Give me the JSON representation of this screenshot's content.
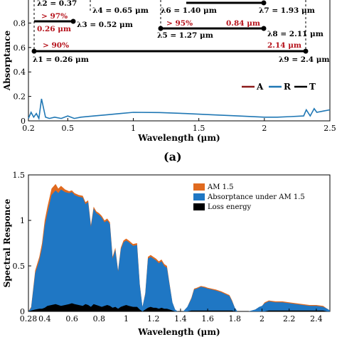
{
  "colors": {
    "absorptance": "#8b1a1a",
    "reflectance": "#1f77b4",
    "transmittance": "#000000",
    "am15": "#e06a1f",
    "absorbed": "#1f77c4",
    "loss": "#000000",
    "annotation_red": "#b5121b"
  },
  "chart_data": [
    {
      "type": "line",
      "panel_label": "(a)",
      "xlabel": "Wavelength (μm)",
      "ylabel": "Absorptance",
      "xlim": [
        0.2,
        2.5
      ],
      "ylim": [
        0,
        1
      ],
      "xticks": [
        "0.2",
        "0.5",
        "1",
        "1.5",
        "2",
        "2.5"
      ],
      "xtick_values": [
        0.2,
        0.5,
        1,
        1.5,
        2,
        2.5
      ],
      "yticks": [
        "0",
        "0.2",
        "0.4",
        "0.6",
        "0.8"
      ],
      "ytick_values": [
        0,
        0.2,
        0.4,
        0.6,
        0.8
      ],
      "legend": [
        "A",
        "R",
        "T"
      ],
      "legend_position": "bottom-right",
      "series": [
        {
          "name": "R",
          "x": [
            0.2,
            0.22,
            0.24,
            0.26,
            0.28,
            0.3,
            0.33,
            0.36,
            0.4,
            0.45,
            0.5,
            0.55,
            0.6,
            0.7,
            0.8,
            0.9,
            1.0,
            1.2,
            1.4,
            1.6,
            1.8,
            2.0,
            2.1,
            2.2,
            2.3,
            2.32,
            2.35,
            2.38,
            2.4,
            2.45,
            2.5
          ],
          "y": [
            0.02,
            0.07,
            0.03,
            0.06,
            0.02,
            0.18,
            0.03,
            0.02,
            0.03,
            0.02,
            0.04,
            0.02,
            0.03,
            0.04,
            0.05,
            0.06,
            0.07,
            0.068,
            0.06,
            0.05,
            0.04,
            0.03,
            0.03,
            0.035,
            0.04,
            0.09,
            0.04,
            0.1,
            0.07,
            0.08,
            0.09
          ]
        }
      ],
      "annotations": [
        {
          "text": "λ2 = 0.37",
          "color": "black"
        },
        {
          "text": "λ4 = 0.65 μm",
          "color": "black"
        },
        {
          "text": "> 97%",
          "color": "red"
        },
        {
          "text": "0.26 μm",
          "color": "red"
        },
        {
          "text": "λ3 = 0.52 μm",
          "color": "black"
        },
        {
          "text": "λ6 = 1.40 μm",
          "color": "black"
        },
        {
          "text": "λ7 = 1.93 μm",
          "color": "black"
        },
        {
          "text": "> 95%",
          "color": "red"
        },
        {
          "text": "0.84 μm",
          "color": "red"
        },
        {
          "text": "λ5 = 1.27 μm",
          "color": "black"
        },
        {
          "text": "λ8 = 2.11 μm",
          "color": "black"
        },
        {
          "text": "> 90%",
          "color": "red"
        },
        {
          "text": "2.14 μm",
          "color": "red"
        },
        {
          "text": "λ1 = 0.26 μm",
          "color": "black"
        },
        {
          "text": "λ9 = 2.4 μm",
          "color": "black"
        }
      ]
    },
    {
      "type": "area",
      "xlabel": "Wavelength (μm)",
      "ylabel": "Spectral Responce",
      "xlim": [
        0.28,
        2.5
      ],
      "ylim": [
        0,
        1.5
      ],
      "xticks": [
        "0.28",
        "0.4",
        "0.6",
        "0.8",
        "1",
        "1.2",
        "1.4",
        "1.6",
        "1.8",
        "2",
        "2.2",
        "2.4"
      ],
      "xtick_values": [
        0.28,
        0.4,
        0.6,
        0.8,
        1,
        1.2,
        1.4,
        1.6,
        1.8,
        2,
        2.2,
        2.4
      ],
      "yticks": [
        "0",
        "0.5",
        "1",
        "1.5"
      ],
      "ytick_values": [
        0,
        0.5,
        1,
        1.5
      ],
      "legend": [
        "AM 1.5",
        "Absorptance under AM 1.5",
        "Loss energy"
      ],
      "legend_position": "top-right",
      "x": [
        0.28,
        0.3,
        0.33,
        0.36,
        0.38,
        0.4,
        0.42,
        0.45,
        0.48,
        0.5,
        0.52,
        0.55,
        0.58,
        0.6,
        0.62,
        0.65,
        0.68,
        0.7,
        0.72,
        0.74,
        0.76,
        0.78,
        0.8,
        0.82,
        0.84,
        0.86,
        0.88,
        0.9,
        0.92,
        0.94,
        0.96,
        0.98,
        1.0,
        1.02,
        1.05,
        1.08,
        1.1,
        1.12,
        1.14,
        1.16,
        1.18,
        1.2,
        1.22,
        1.24,
        1.26,
        1.28,
        1.3,
        1.32,
        1.34,
        1.36,
        1.38,
        1.4,
        1.42,
        1.45,
        1.48,
        1.5,
        1.52,
        1.55,
        1.58,
        1.6,
        1.63,
        1.66,
        1.7,
        1.73,
        1.76,
        1.78,
        1.8,
        1.82,
        1.85,
        1.9,
        1.95,
        1.98,
        2.0,
        2.02,
        2.05,
        2.1,
        2.15,
        2.2,
        2.25,
        2.3,
        2.35,
        2.4,
        2.45,
        2.48,
        2.5
      ],
      "series": [
        {
          "name": "AM 1.5",
          "values": [
            0.0,
            0.05,
            0.45,
            0.6,
            0.75,
            1.0,
            1.15,
            1.35,
            1.4,
            1.35,
            1.38,
            1.34,
            1.32,
            1.33,
            1.3,
            1.28,
            1.27,
            1.2,
            1.22,
            0.95,
            1.15,
            1.1,
            1.08,
            1.05,
            1.0,
            1.02,
            0.98,
            0.6,
            0.7,
            0.45,
            0.7,
            0.78,
            0.8,
            0.78,
            0.74,
            0.75,
            0.3,
            0.05,
            0.2,
            0.6,
            0.62,
            0.6,
            0.58,
            0.55,
            0.57,
            0.52,
            0.5,
            0.3,
            0.1,
            0.02,
            0.0,
            0.0,
            0.0,
            0.05,
            0.15,
            0.25,
            0.26,
            0.28,
            0.27,
            0.26,
            0.25,
            0.24,
            0.22,
            0.2,
            0.18,
            0.12,
            0.04,
            0.0,
            0.0,
            0.0,
            0.02,
            0.05,
            0.06,
            0.1,
            0.12,
            0.11,
            0.11,
            0.1,
            0.09,
            0.08,
            0.07,
            0.07,
            0.06,
            0.03,
            0.01
          ]
        },
        {
          "name": "Absorptance under AM 1.5",
          "values": [
            0.0,
            0.04,
            0.42,
            0.56,
            0.7,
            0.94,
            1.08,
            1.28,
            1.33,
            1.3,
            1.34,
            1.31,
            1.3,
            1.31,
            1.28,
            1.26,
            1.25,
            1.18,
            1.2,
            0.93,
            1.13,
            1.08,
            1.06,
            1.03,
            0.98,
            1.0,
            0.96,
            0.58,
            0.68,
            0.44,
            0.68,
            0.76,
            0.78,
            0.76,
            0.72,
            0.73,
            0.29,
            0.05,
            0.19,
            0.58,
            0.6,
            0.58,
            0.56,
            0.53,
            0.55,
            0.5,
            0.48,
            0.29,
            0.1,
            0.02,
            0.0,
            0.0,
            0.0,
            0.05,
            0.14,
            0.24,
            0.25,
            0.27,
            0.26,
            0.25,
            0.24,
            0.23,
            0.21,
            0.19,
            0.17,
            0.11,
            0.04,
            0.0,
            0.0,
            0.0,
            0.02,
            0.05,
            0.06,
            0.09,
            0.11,
            0.1,
            0.1,
            0.09,
            0.08,
            0.07,
            0.06,
            0.06,
            0.05,
            0.03,
            0.01
          ]
        },
        {
          "name": "Loss energy",
          "values": [
            0.0,
            0.01,
            0.02,
            0.03,
            0.03,
            0.04,
            0.06,
            0.07,
            0.08,
            0.07,
            0.06,
            0.07,
            0.08,
            0.09,
            0.08,
            0.07,
            0.06,
            0.08,
            0.07,
            0.05,
            0.08,
            0.07,
            0.06,
            0.05,
            0.06,
            0.07,
            0.06,
            0.04,
            0.05,
            0.03,
            0.05,
            0.06,
            0.07,
            0.06,
            0.05,
            0.05,
            0.02,
            0.0,
            0.02,
            0.04,
            0.05,
            0.04,
            0.04,
            0.03,
            0.04,
            0.03,
            0.03,
            0.02,
            0.01,
            0.0,
            0.0,
            0.0,
            0.0,
            0.0,
            0.01,
            0.01,
            0.01,
            0.01,
            0.01,
            0.01,
            0.01,
            0.01,
            0.01,
            0.01,
            0.01,
            0.01,
            0.0,
            0.0,
            0.0,
            0.0,
            0.0,
            0.0,
            0.0,
            0.0,
            0.01,
            0.01,
            0.01,
            0.01,
            0.01,
            0.01,
            0.01,
            0.01,
            0.01,
            0.0,
            0.0
          ]
        }
      ]
    }
  ]
}
